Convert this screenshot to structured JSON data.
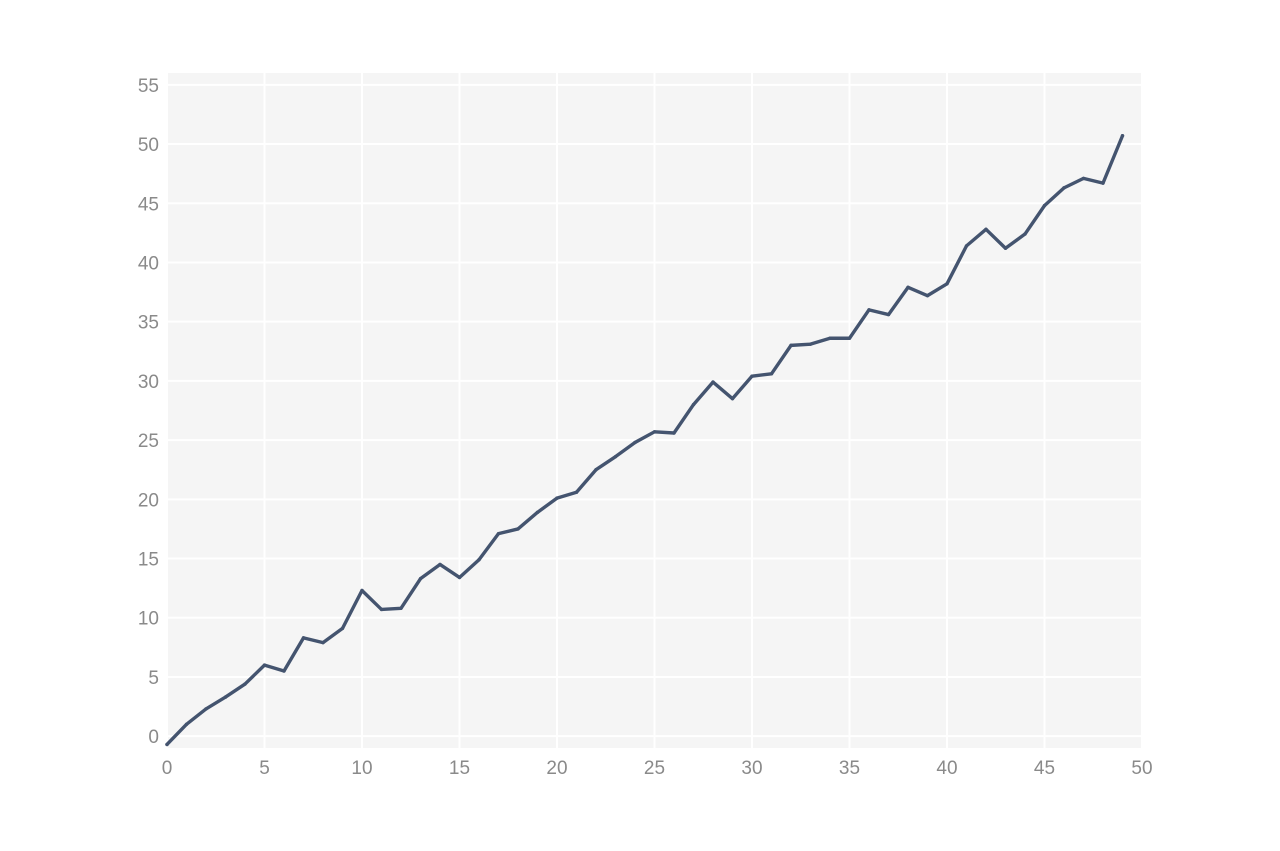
{
  "chart_data": {
    "type": "line",
    "title": "",
    "xlabel": "",
    "ylabel": "",
    "xlim": [
      0,
      50
    ],
    "ylim": [
      -1,
      56
    ],
    "grid": true,
    "x_ticks": [
      "0",
      "5",
      "10",
      "15",
      "20",
      "25",
      "30",
      "35",
      "40",
      "45",
      "50"
    ],
    "y_ticks": [
      "0",
      "5",
      "10",
      "15",
      "20",
      "25",
      "30",
      "35",
      "40",
      "45",
      "50",
      "55"
    ],
    "colors": {
      "series": "#44546f",
      "plot_bg": "#f5f5f5",
      "grid": "#ffffff",
      "tick": "#8a8a8a"
    },
    "series": [
      {
        "x": [
          0,
          1,
          2,
          3,
          4,
          5,
          6,
          7,
          8,
          9,
          10,
          11,
          12,
          13,
          14,
          15,
          16,
          17,
          18,
          19,
          20,
          21,
          22,
          23,
          24,
          25,
          26,
          27,
          28,
          29,
          30,
          31,
          32,
          33,
          34,
          35,
          36,
          37,
          38,
          39,
          40,
          41,
          42,
          43,
          44,
          45,
          46,
          47,
          48,
          49
        ],
        "values": [
          -0.7,
          1.0,
          2.3,
          3.3,
          4.4,
          6.0,
          5.5,
          8.3,
          7.9,
          9.1,
          12.3,
          10.7,
          10.8,
          13.3,
          14.5,
          13.4,
          14.9,
          17.1,
          17.5,
          18.9,
          20.1,
          20.6,
          22.5,
          23.6,
          24.8,
          25.7,
          25.6,
          28.0,
          29.9,
          28.5,
          30.4,
          30.6,
          33.0,
          33.1,
          33.6,
          33.6,
          36.0,
          35.6,
          37.9,
          37.2,
          38.2,
          41.4,
          42.8,
          41.2,
          42.4,
          44.8,
          46.3,
          47.1,
          46.7,
          50.7
        ]
      }
    ]
  }
}
